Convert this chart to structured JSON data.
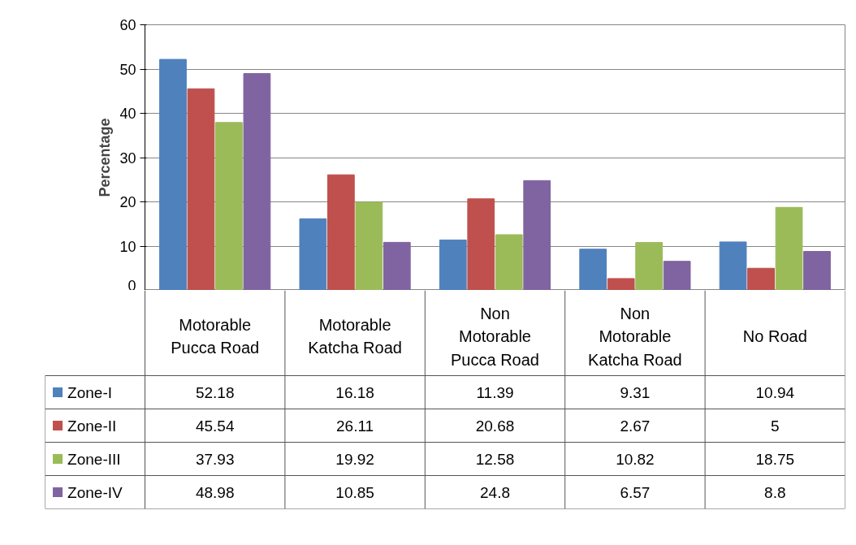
{
  "chart_data": {
    "type": "bar",
    "ylabel": "Percentage",
    "categories": [
      "Motorable Pucca Road",
      "Motorable Katcha Road",
      "Non Motorable Pucca Road",
      "Non Motorable Katcha Road",
      "No Road"
    ],
    "series": [
      {
        "name": "Zone-I",
        "color": "#4f81bd",
        "values": [
          52.18,
          16.18,
          11.39,
          9.31,
          10.94
        ]
      },
      {
        "name": "Zone-II",
        "color": "#c0504d",
        "values": [
          45.54,
          26.11,
          20.68,
          2.67,
          5
        ]
      },
      {
        "name": "Zone-III",
        "color": "#9bbb59",
        "values": [
          37.93,
          19.92,
          12.58,
          10.82,
          18.75
        ]
      },
      {
        "name": "Zone-IV",
        "color": "#8064a2",
        "values": [
          48.98,
          10.85,
          24.8,
          6.57,
          8.8
        ]
      }
    ],
    "ylim": [
      0,
      60
    ],
    "yticks": [
      0,
      10,
      20,
      30,
      40,
      50,
      60
    ],
    "grid": "y",
    "legend": "bottom",
    "data_labels": true
  }
}
